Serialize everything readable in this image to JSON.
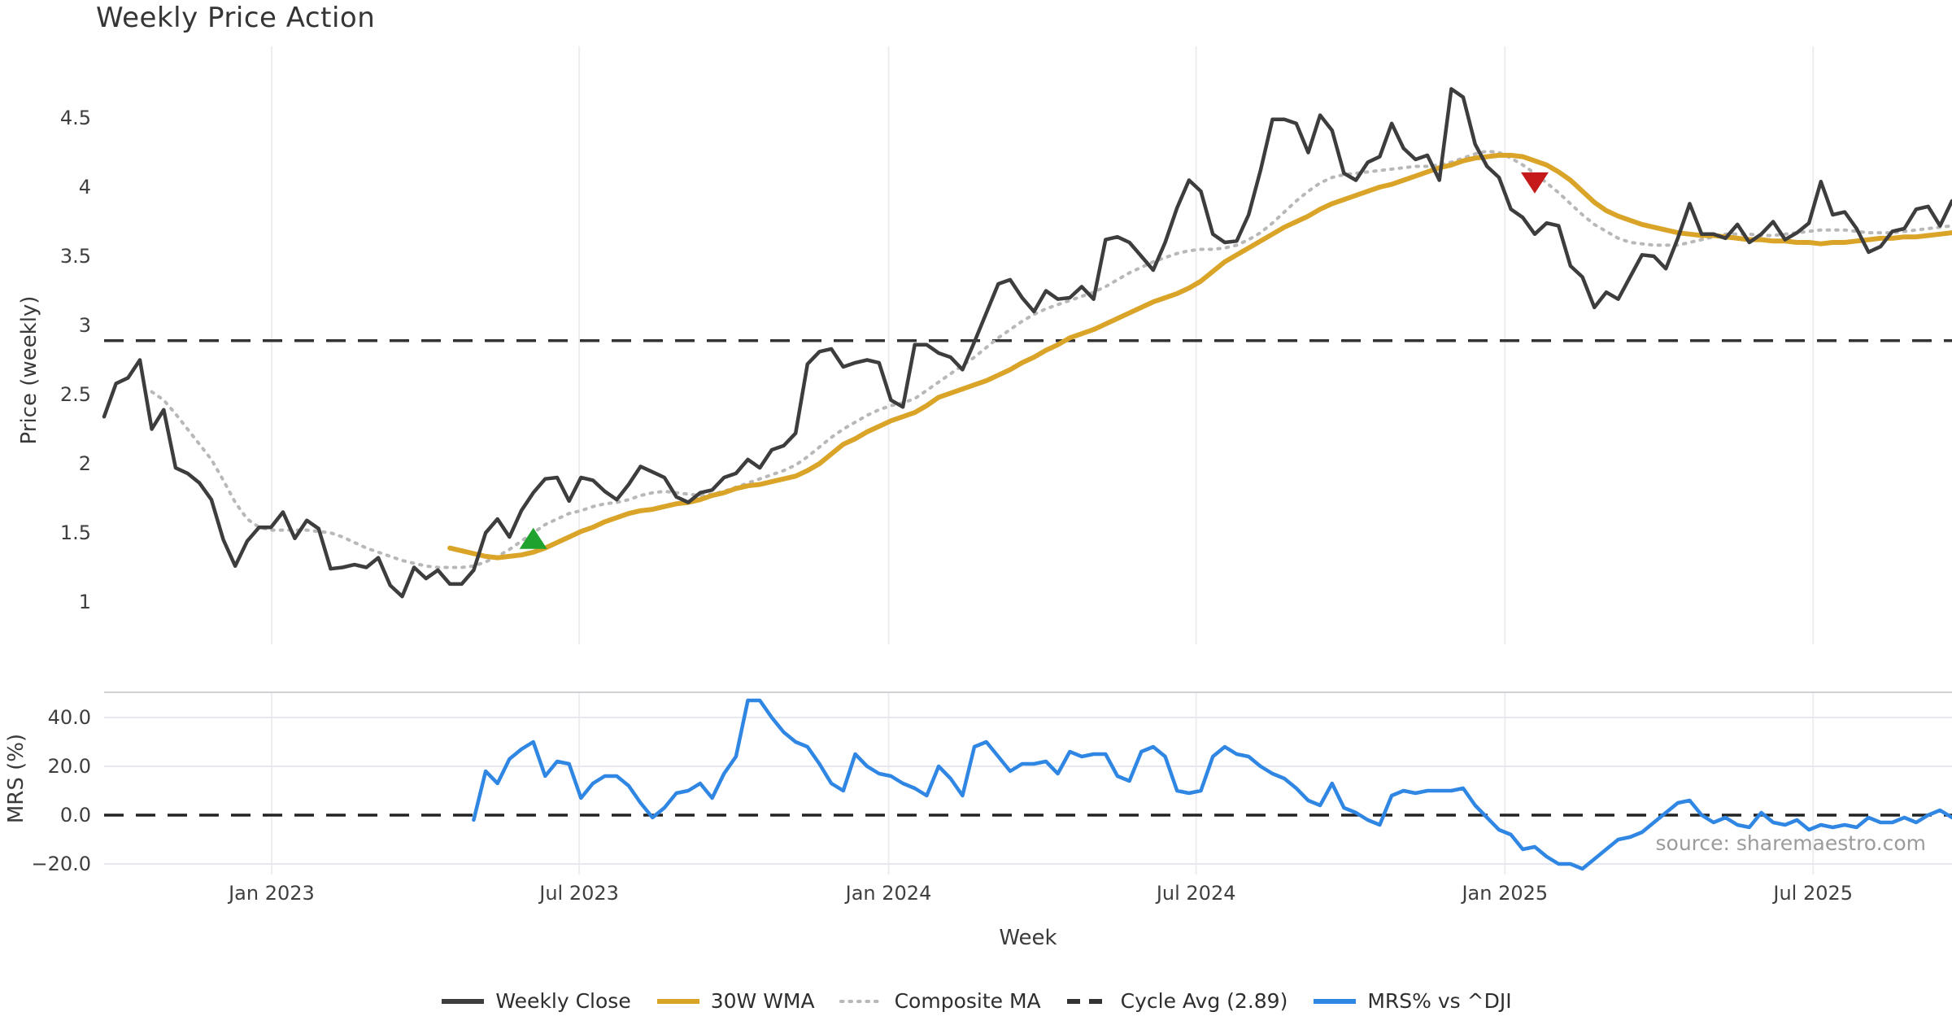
{
  "title": "Weekly Price Action",
  "xlabel": "Week",
  "source_note": "source: sharemaestro.com",
  "legend": [
    {
      "label": "Weekly Close",
      "color": "#3d3d3d",
      "style": "solid"
    },
    {
      "label": "30W WMA",
      "color": "#d9a427",
      "style": "solid"
    },
    {
      "label": "Composite MA",
      "color": "#b8b8b8",
      "style": "dotted"
    },
    {
      "label": "Cycle Avg (2.89)",
      "color": "#333333",
      "style": "dashed"
    },
    {
      "label": "MRS% vs ^DJI",
      "color": "#2f86e3",
      "style": "solid"
    }
  ],
  "chart_data": {
    "type": "line",
    "x": {
      "label": "Week",
      "unit": "weeks",
      "weeks_total": 156,
      "ticks": [
        {
          "label": "Jan 2023",
          "week": 14.05
        },
        {
          "label": "Jul 2023",
          "week": 39.85
        },
        {
          "label": "Jan 2024",
          "week": 65.8
        },
        {
          "label": "Jul 2024",
          "week": 91.6
        },
        {
          "label": "Jan 2025",
          "week": 117.5
        },
        {
          "label": "Jul 2025",
          "week": 143.35
        }
      ]
    },
    "panels": [
      {
        "id": "price",
        "ylabel": "Price (weekly)",
        "ylim": [
          0.75,
          5.0
        ],
        "yticks": [
          {
            "label": "4.5",
            "value": 4.5
          },
          {
            "label": "4",
            "value": 4.0
          },
          {
            "label": "3.5",
            "value": 3.5
          },
          {
            "label": "3",
            "value": 3.0
          },
          {
            "label": "2.5",
            "value": 2.5
          },
          {
            "label": "2",
            "value": 2.0
          },
          {
            "label": "1.5",
            "value": 1.5
          },
          {
            "label": "1",
            "value": 1.0
          }
        ],
        "hline": {
          "name": "Cycle Avg (2.89)",
          "value": 2.89,
          "style": "dashed",
          "color": "#333333"
        },
        "series": [
          {
            "name": "Weekly Close",
            "color": "#3d3d3d",
            "style": "solid",
            "width": 4.5,
            "start_week": 0,
            "values": [
              2.34,
              2.58,
              2.62,
              2.75,
              2.25,
              2.39,
              1.97,
              1.93,
              1.86,
              1.74,
              1.45,
              1.26,
              1.44,
              1.54,
              1.54,
              1.65,
              1.46,
              1.59,
              1.53,
              1.24,
              1.25,
              1.27,
              1.25,
              1.32,
              1.12,
              1.04,
              1.25,
              1.17,
              1.23,
              1.13,
              1.13,
              1.23,
              1.5,
              1.6,
              1.47,
              1.66,
              1.79,
              1.89,
              1.9,
              1.73,
              1.9,
              1.88,
              1.8,
              1.74,
              1.85,
              1.98,
              1.94,
              1.9,
              1.76,
              1.72,
              1.79,
              1.81,
              1.9,
              1.93,
              2.03,
              1.97,
              2.1,
              2.13,
              2.22,
              2.72,
              2.81,
              2.83,
              2.7,
              2.73,
              2.75,
              2.73,
              2.46,
              2.41,
              2.86,
              2.86,
              2.8,
              2.77,
              2.68,
              2.88,
              3.09,
              3.3,
              3.33,
              3.2,
              3.1,
              3.25,
              3.19,
              3.2,
              3.28,
              3.19,
              3.62,
              3.64,
              3.6,
              3.5,
              3.4,
              3.6,
              3.85,
              4.05,
              3.97,
              3.66,
              3.6,
              3.61,
              3.8,
              4.12,
              4.49,
              4.49,
              4.46,
              4.25,
              4.52,
              4.41,
              4.1,
              4.05,
              4.18,
              4.22,
              4.46,
              4.28,
              4.2,
              4.23,
              4.05,
              4.71,
              4.65,
              4.31,
              4.15,
              4.07,
              3.84,
              3.78,
              3.66,
              3.74,
              3.72,
              3.43,
              3.35,
              3.13,
              3.24,
              3.19,
              3.35,
              3.51,
              3.5,
              3.41,
              3.63,
              3.88,
              3.66,
              3.66,
              3.63,
              3.73,
              3.6,
              3.66,
              3.75,
              3.62,
              3.67,
              3.74,
              4.04,
              3.8,
              3.82,
              3.7,
              3.53,
              3.57,
              3.68,
              3.7,
              3.84,
              3.86,
              3.72,
              3.9
            ]
          },
          {
            "name": "30W WMA",
            "color": "#d9a427",
            "style": "solid",
            "width": 6,
            "start_week": 29,
            "values": [
              1.39,
              1.37,
              1.35,
              1.33,
              1.32,
              1.33,
              1.34,
              1.36,
              1.39,
              1.43,
              1.47,
              1.51,
              1.54,
              1.58,
              1.61,
              1.64,
              1.66,
              1.67,
              1.69,
              1.71,
              1.72,
              1.74,
              1.77,
              1.79,
              1.82,
              1.84,
              1.85,
              1.87,
              1.89,
              1.91,
              1.95,
              2.0,
              2.07,
              2.14,
              2.18,
              2.23,
              2.27,
              2.31,
              2.34,
              2.37,
              2.42,
              2.48,
              2.51,
              2.54,
              2.57,
              2.6,
              2.64,
              2.68,
              2.73,
              2.77,
              2.82,
              2.86,
              2.91,
              2.94,
              2.97,
              3.01,
              3.05,
              3.09,
              3.13,
              3.17,
              3.2,
              3.23,
              3.27,
              3.32,
              3.39,
              3.46,
              3.51,
              3.56,
              3.61,
              3.66,
              3.71,
              3.75,
              3.79,
              3.84,
              3.88,
              3.91,
              3.94,
              3.97,
              4.0,
              4.02,
              4.05,
              4.08,
              4.11,
              4.14,
              4.16,
              4.19,
              4.21,
              4.22,
              4.23,
              4.23,
              4.22,
              4.19,
              4.16,
              4.11,
              4.05,
              3.97,
              3.89,
              3.83,
              3.79,
              3.76,
              3.73,
              3.71,
              3.69,
              3.67,
              3.66,
              3.65,
              3.65,
              3.64,
              3.63,
              3.62,
              3.62,
              3.61,
              3.61,
              3.6,
              3.6,
              3.59,
              3.6,
              3.6,
              3.61,
              3.62,
              3.63,
              3.63,
              3.64,
              3.64,
              3.65,
              3.66,
              3.67
            ]
          },
          {
            "name": "Composite MA",
            "color": "#b8b8b8",
            "style": "dotted",
            "width": 4,
            "start_week": 4,
            "values": [
              2.52,
              2.46,
              2.36,
              2.25,
              2.14,
              2.03,
              1.88,
              1.72,
              1.6,
              1.54,
              1.52,
              1.52,
              1.52,
              1.52,
              1.51,
              1.5,
              1.47,
              1.43,
              1.39,
              1.36,
              1.33,
              1.3,
              1.28,
              1.26,
              1.25,
              1.25,
              1.25,
              1.26,
              1.29,
              1.33,
              1.38,
              1.44,
              1.5,
              1.56,
              1.6,
              1.64,
              1.66,
              1.69,
              1.71,
              1.72,
              1.74,
              1.77,
              1.79,
              1.8,
              1.79,
              1.78,
              1.77,
              1.78,
              1.8,
              1.83,
              1.86,
              1.89,
              1.92,
              1.95,
              1.99,
              2.05,
              2.12,
              2.19,
              2.25,
              2.3,
              2.35,
              2.39,
              2.42,
              2.44,
              2.47,
              2.53,
              2.59,
              2.65,
              2.71,
              2.77,
              2.84,
              2.91,
              2.97,
              3.03,
              3.08,
              3.12,
              3.15,
              3.18,
              3.21,
              3.24,
              3.28,
              3.33,
              3.38,
              3.42,
              3.46,
              3.49,
              3.52,
              3.54,
              3.55,
              3.55,
              3.56,
              3.58,
              3.62,
              3.67,
              3.74,
              3.82,
              3.9,
              3.97,
              4.03,
              4.07,
              4.09,
              4.1,
              4.11,
              4.12,
              4.13,
              4.14,
              4.15,
              4.15,
              4.16,
              4.18,
              4.21,
              4.24,
              4.26,
              4.25,
              4.21,
              4.16,
              4.1,
              4.03,
              3.96,
              3.88,
              3.8,
              3.73,
              3.68,
              3.63,
              3.6,
              3.59,
              3.58,
              3.58,
              3.58,
              3.6,
              3.62,
              3.64,
              3.66,
              3.66,
              3.66,
              3.65,
              3.65,
              3.66,
              3.67,
              3.68,
              3.69,
              3.69,
              3.69,
              3.68,
              3.67,
              3.67,
              3.67,
              3.68,
              3.69,
              3.7,
              3.71,
              3.72
            ]
          }
        ],
        "markers": [
          {
            "name": "buy-signal",
            "shape": "triangle-up",
            "color": "#1fa32e",
            "week": 36,
            "value": 1.46
          },
          {
            "name": "sell-signal",
            "shape": "triangle-down",
            "color": "#c41a1a",
            "week": 120,
            "value": 4.03
          }
        ]
      },
      {
        "id": "mrs",
        "ylabel": "MRS (%)",
        "ylim": [
          -28,
          52
        ],
        "yticks": [
          {
            "label": "40.0",
            "value": 40
          },
          {
            "label": "20.0",
            "value": 20
          },
          {
            "label": "0.0",
            "value": 0
          },
          {
            "label": "−20.0",
            "value": -20
          }
        ],
        "hline": {
          "name": "zero line",
          "value": 0,
          "style": "dashed",
          "color": "#222222"
        },
        "series": [
          {
            "name": "MRS% vs ^DJI",
            "color": "#2f86e3",
            "style": "solid",
            "width": 4.5,
            "start_week": 31,
            "values": [
              -2,
              18,
              13,
              23,
              27,
              30,
              16,
              22,
              21,
              7,
              13,
              16,
              16,
              12,
              5,
              -1,
              3,
              9,
              10,
              13,
              7,
              17,
              24,
              47,
              47,
              40,
              34,
              30,
              28,
              21,
              13,
              10,
              25,
              20,
              17,
              16,
              13,
              11,
              8,
              20,
              15,
              8,
              28,
              30,
              24,
              18,
              21,
              21,
              22,
              17,
              26,
              24,
              25,
              25,
              16,
              14,
              26,
              28,
              24,
              10,
              9,
              10,
              24,
              28,
              25,
              24,
              20,
              17,
              15,
              11,
              6,
              4,
              13,
              3,
              1,
              -2,
              -4,
              8,
              10,
              9,
              10,
              10,
              10,
              11,
              4,
              -1,
              -6,
              -8,
              -14,
              -13,
              -17,
              -20,
              -20,
              -22,
              -18,
              -14,
              -10,
              -9,
              -7,
              -3,
              1,
              5,
              6,
              0,
              -3,
              -1,
              -4,
              -5,
              1,
              -3,
              -4,
              -2,
              -6,
              -4,
              -5,
              -4,
              -5,
              -1,
              -3,
              -3,
              -1,
              -3,
              0,
              2,
              -1
            ]
          }
        ]
      }
    ]
  }
}
